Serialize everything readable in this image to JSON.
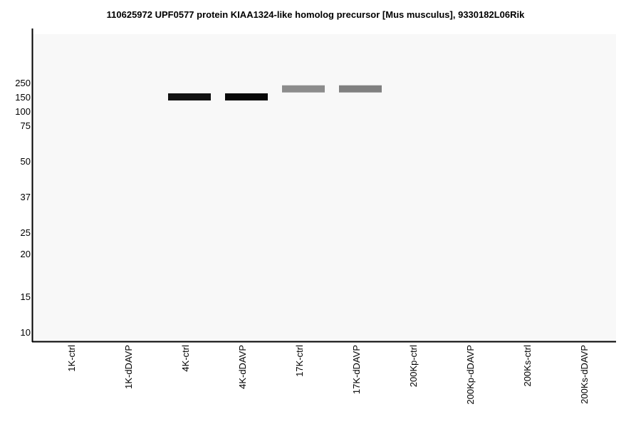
{
  "chart_data": {
    "type": "western-blot",
    "title": "110625972 UPF0577 protein KIAA1324-like homolog precursor [Mus musculus], 9330182L06Rik",
    "y_ticks": [
      "250",
      "150",
      "100",
      "75",
      "50",
      "37",
      "25",
      "20",
      "15",
      "10"
    ],
    "lanes": [
      "1K-ctrl",
      "1K-dDAVP",
      "4K-ctrl",
      "4K-dDAVP",
      "17K-ctrl",
      "17K-dDAVP",
      "200Kp-ctrl",
      "200Kp-dDAVP",
      "200Ks-ctrl",
      "200Ks-dDAVP"
    ],
    "bands": [
      {
        "lane": "4K-ctrl",
        "mw": 150,
        "intensity": 0.93
      },
      {
        "lane": "4K-dDAVP",
        "mw": 150,
        "intensity": 0.97
      },
      {
        "lane": "17K-ctrl",
        "mw": 200,
        "intensity": 0.45
      },
      {
        "lane": "17K-dDAVP",
        "mw": 200,
        "intensity": 0.5
      }
    ],
    "background_color": "#f8f8f8",
    "axis_color": "#000000"
  }
}
